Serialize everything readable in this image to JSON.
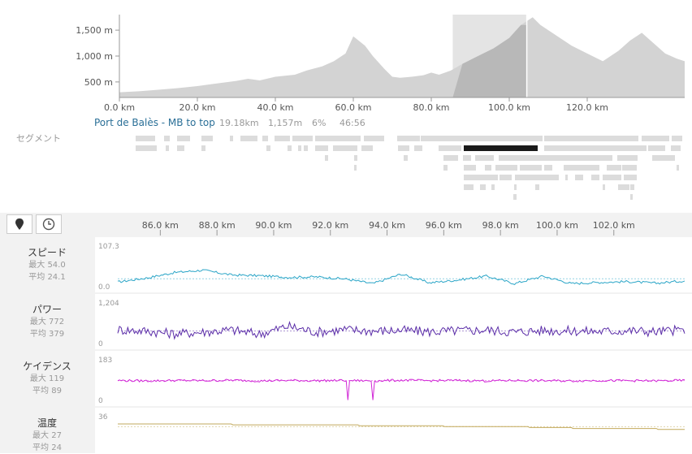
{
  "elevation": {
    "y_ticks": [
      "1,500 m",
      "1,000 m",
      "500 m"
    ],
    "x_ticks": [
      "0.0 km",
      "20.0 km",
      "40.0 km",
      "60.0 km",
      "80.0 km",
      "100.0 km",
      "120.0 km"
    ]
  },
  "chart_data": [
    {
      "type": "area",
      "xlabel": "",
      "ylabel": "",
      "xlim": [
        0,
        145
      ],
      "ylim": [
        200,
        1800
      ],
      "x": [
        0,
        5,
        10,
        15,
        20,
        25,
        30,
        33,
        36,
        40,
        45,
        48,
        52,
        55,
        58,
        60,
        63,
        65,
        68,
        70,
        72,
        75,
        78,
        80,
        82,
        85,
        88,
        92,
        96,
        100,
        103,
        106,
        108,
        112,
        116,
        120,
        124,
        128,
        131,
        134,
        137,
        140,
        143,
        145
      ],
      "values": [
        300,
        320,
        350,
        380,
        420,
        470,
        520,
        560,
        530,
        600,
        640,
        720,
        800,
        900,
        1050,
        1380,
        1200,
        1000,
        750,
        600,
        580,
        600,
        630,
        680,
        640,
        720,
        850,
        1000,
        1150,
        1350,
        1600,
        1750,
        1600,
        1400,
        1200,
        1050,
        900,
        1100,
        1300,
        1450,
        1250,
        1050,
        950,
        900
      ],
      "highlight_range": [
        85.5,
        104.5
      ]
    },
    {
      "type": "line",
      "name": "スピード",
      "ylim": [
        0,
        107.3
      ],
      "xlim": [
        84.5,
        104.5
      ],
      "x": [
        84.5,
        85.5,
        86.5,
        87.5,
        88.5,
        89.5,
        90.5,
        91.5,
        92.5,
        93.5,
        94.5,
        95.5,
        96.5,
        97.5,
        98.5,
        99.5,
        100.5,
        101.5,
        102.5,
        103.5,
        104.5
      ],
      "values": [
        14,
        24,
        38,
        44,
        32,
        30,
        26,
        27,
        22,
        10,
        34,
        12,
        19,
        29,
        10,
        29,
        10,
        13,
        15,
        11,
        17
      ]
    },
    {
      "type": "line",
      "name": "パワー",
      "ylim": [
        0,
        1204
      ],
      "xlim": [
        84.5,
        104.5
      ],
      "x": [
        84.5,
        85.5,
        86.5,
        87.5,
        88.5,
        89.5,
        90.5,
        91.5,
        92.5,
        93.5,
        94.5,
        95.5,
        96.5,
        97.5,
        98.5,
        99.5,
        100.5,
        101.5,
        102.5,
        103.5,
        104.5
      ],
      "values": [
        420,
        380,
        300,
        350,
        410,
        290,
        520,
        350,
        420,
        380,
        400,
        360,
        390,
        410,
        350,
        400,
        380,
        370,
        390,
        360,
        420
      ]
    },
    {
      "type": "line",
      "name": "ケイデンス",
      "ylim": [
        0,
        183
      ],
      "xlim": [
        84.5,
        104.5
      ],
      "x": [
        84.5,
        85.5,
        86.5,
        87.5,
        88.5,
        89.5,
        90.5,
        91.5,
        92.5,
        93.5,
        94.5,
        95.5,
        96.5,
        97.5,
        98.5,
        99.5,
        100.5,
        101.5,
        102.5,
        103.5,
        104.5
      ],
      "values": [
        90,
        88,
        90,
        89,
        91,
        88,
        90,
        89,
        90,
        88,
        91,
        89,
        90,
        88,
        90,
        89,
        88,
        90,
        89,
        88,
        90
      ]
    },
    {
      "type": "line",
      "name": "温度",
      "ylim": [
        0,
        36
      ],
      "xlim": [
        84.5,
        104.5
      ],
      "x": [
        84.5,
        88,
        88.5,
        92.5,
        93,
        95.5,
        96,
        98.5,
        99,
        100,
        100.5,
        102,
        103.5,
        104.5
      ],
      "values": [
        27,
        27,
        26,
        26,
        25,
        25,
        24,
        24,
        23,
        23,
        22,
        22,
        21,
        21
      ]
    }
  ],
  "segments": {
    "section_label": "セグメント",
    "highlighted": {
      "name": "Port de Balès - MB to top",
      "distance": "19.18km",
      "elevation": "1,157m",
      "grade": "6%",
      "time": "46:56"
    }
  },
  "detail": {
    "x_ticks": [
      "86.0 km",
      "88.0 km",
      "90.0 km",
      "92.0 km",
      "94.0 km",
      "96.0 km",
      "98.0 km",
      "100.0 km",
      "102.0 km"
    ],
    "metrics": [
      {
        "name": "スピード",
        "max": "最大 54.0",
        "avg": "平均 24.1",
        "ymax": "107.3",
        "ymin": "0.0",
        "color": "#2aa5c7"
      },
      {
        "name": "パワー",
        "max": "最大 772",
        "avg": "平均 379",
        "ymax": "1,204",
        "ymin": "0",
        "color": "#5b2da8"
      },
      {
        "name": "ケイデンス",
        "max": "最大 119",
        "avg": "平均 89",
        "ymax": "183",
        "ymin": "0",
        "color": "#d126d6"
      },
      {
        "name": "温度",
        "max": "最大 27",
        "avg": "平均 24",
        "ymax": "36",
        "ymin": "",
        "color": "#c2a95c"
      }
    ]
  },
  "icons": {
    "distance_mode": "map-pin-icon",
    "time_mode": "clock-icon"
  }
}
